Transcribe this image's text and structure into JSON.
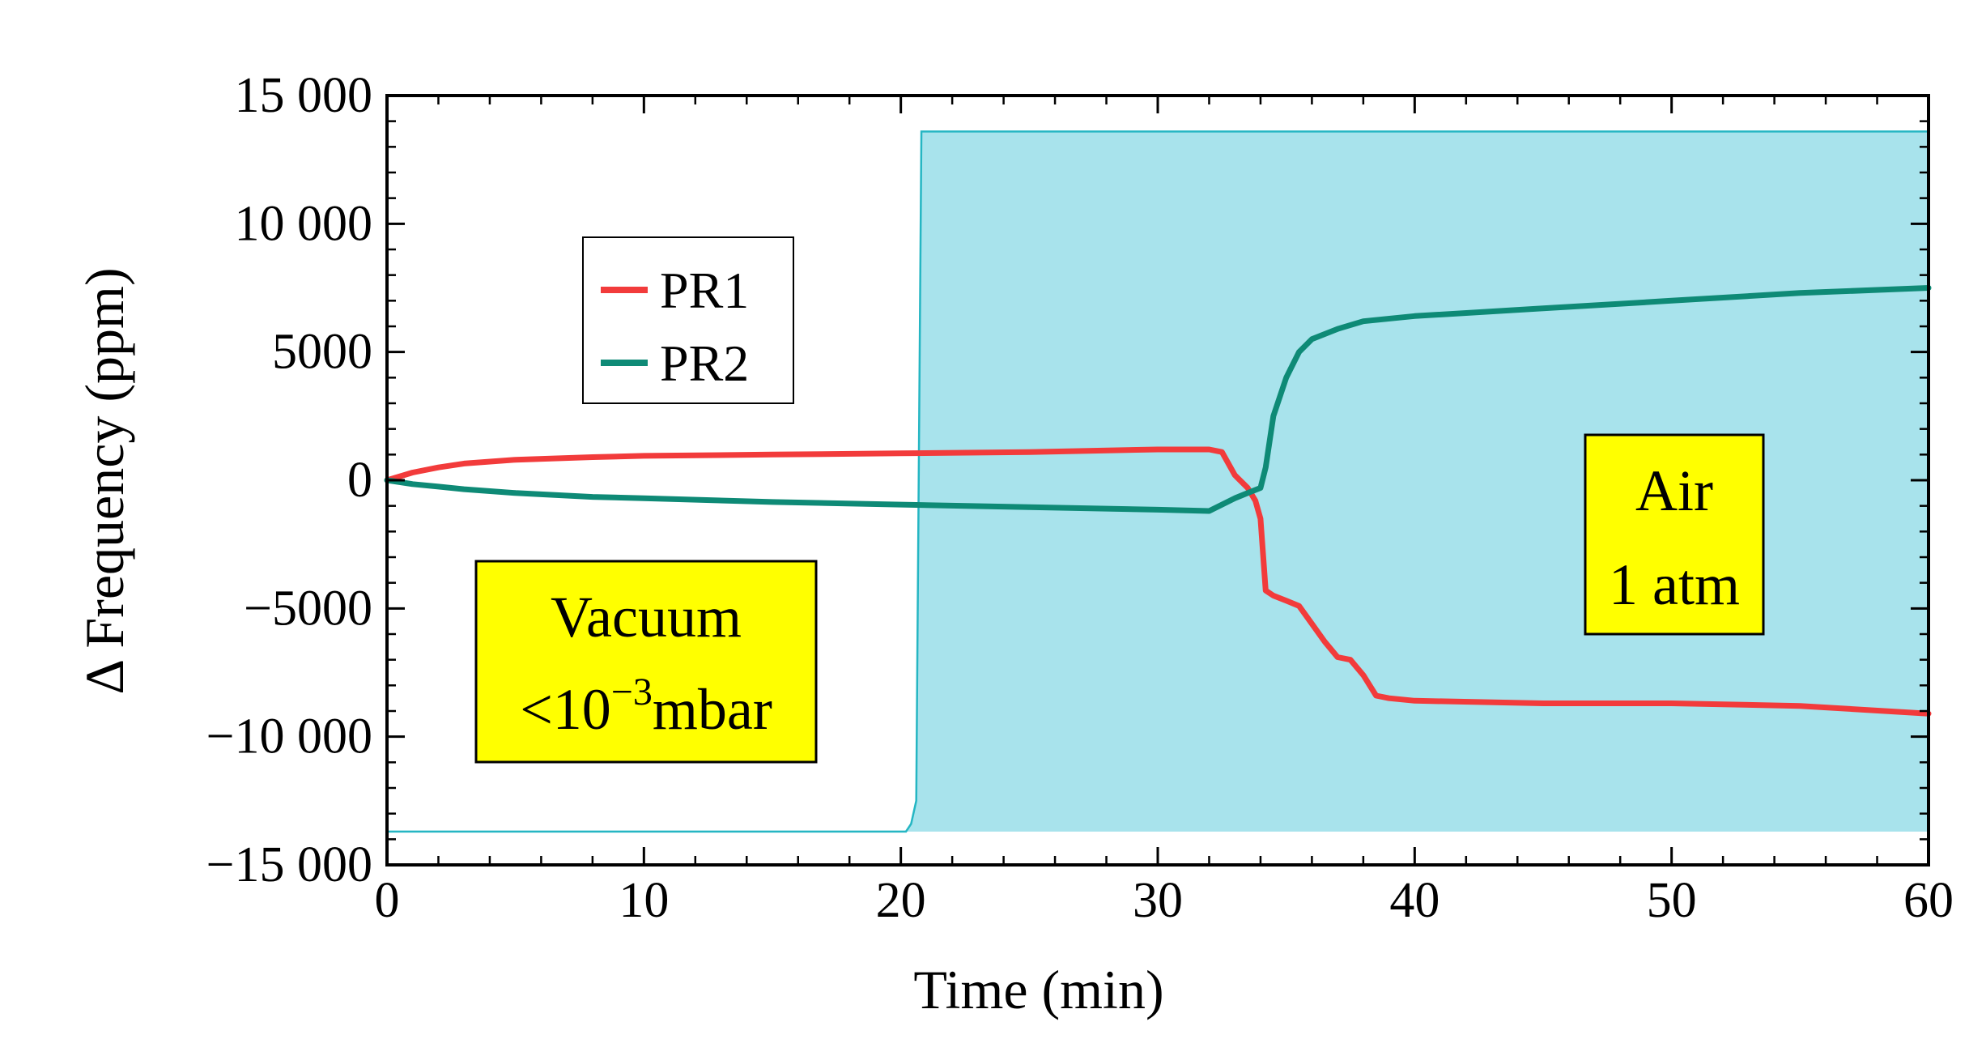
{
  "chart_data": {
    "type": "line",
    "xlabel": "Time (min)",
    "ylabel": "Δ Frequency (ppm)",
    "xlim": [
      0,
      60
    ],
    "ylim": [
      -15000,
      15000
    ],
    "x_ticks": [
      0,
      10,
      20,
      30,
      40,
      50,
      60
    ],
    "x_tick_labels": [
      "0",
      "10",
      "20",
      "30",
      "40",
      "50",
      "60"
    ],
    "y_ticks": [
      15000,
      10000,
      5000,
      0,
      -5000,
      -10000,
      -15000
    ],
    "y_tick_labels": [
      "15 000",
      "10 000",
      "5000",
      "0",
      "−5000",
      "−10 000",
      "−15 000"
    ],
    "grid": false,
    "legend_placement": "upper-left",
    "background_step": {
      "color": "#a8e3ec",
      "edge": "#25b6c3",
      "x": [
        0,
        20.2,
        20.4,
        20.6,
        20.8,
        60
      ],
      "y": [
        -13700,
        -13700,
        -13400,
        -12500,
        13600,
        13600
      ]
    },
    "series": [
      {
        "name": "PR1",
        "color": "#f23b3b",
        "x": [
          0,
          1,
          2,
          3,
          5,
          8,
          10,
          15,
          20,
          25,
          30,
          32,
          32.5,
          33,
          33.5,
          33.8,
          34,
          34.2,
          34.5,
          35,
          35.5,
          36,
          36.5,
          37,
          37.5,
          38,
          38.5,
          39,
          40,
          45,
          50,
          55,
          60
        ],
        "y": [
          0,
          300,
          500,
          650,
          800,
          900,
          950,
          1000,
          1050,
          1100,
          1200,
          1200,
          1100,
          200,
          -300,
          -800,
          -1500,
          -4300,
          -4500,
          -4700,
          -4900,
          -5600,
          -6300,
          -6900,
          -7000,
          -7600,
          -8400,
          -8500,
          -8600,
          -8700,
          -8700,
          -8800,
          -9100
        ]
      },
      {
        "name": "PR2",
        "color": "#0e8a76",
        "x": [
          0,
          1,
          2,
          3,
          5,
          8,
          10,
          15,
          20,
          25,
          30,
          32,
          33,
          33.5,
          34,
          34.2,
          34.5,
          35,
          35.5,
          36,
          37,
          38,
          40,
          45,
          50,
          55,
          60
        ],
        "y": [
          0,
          -150,
          -250,
          -350,
          -500,
          -650,
          -700,
          -850,
          -950,
          -1050,
          -1150,
          -1200,
          -700,
          -500,
          -300,
          500,
          2500,
          4000,
          5000,
          5500,
          5900,
          6200,
          6400,
          6700,
          7000,
          7300,
          7500
        ]
      }
    ],
    "annotations": [
      {
        "id": "vacuum",
        "lines": [
          "Vacuum",
          "<10",
          "−3",
          "mbar"
        ],
        "background": "#ffff00"
      },
      {
        "id": "air",
        "lines": [
          "Air",
          "1 atm"
        ],
        "background": "#ffff00"
      }
    ]
  }
}
